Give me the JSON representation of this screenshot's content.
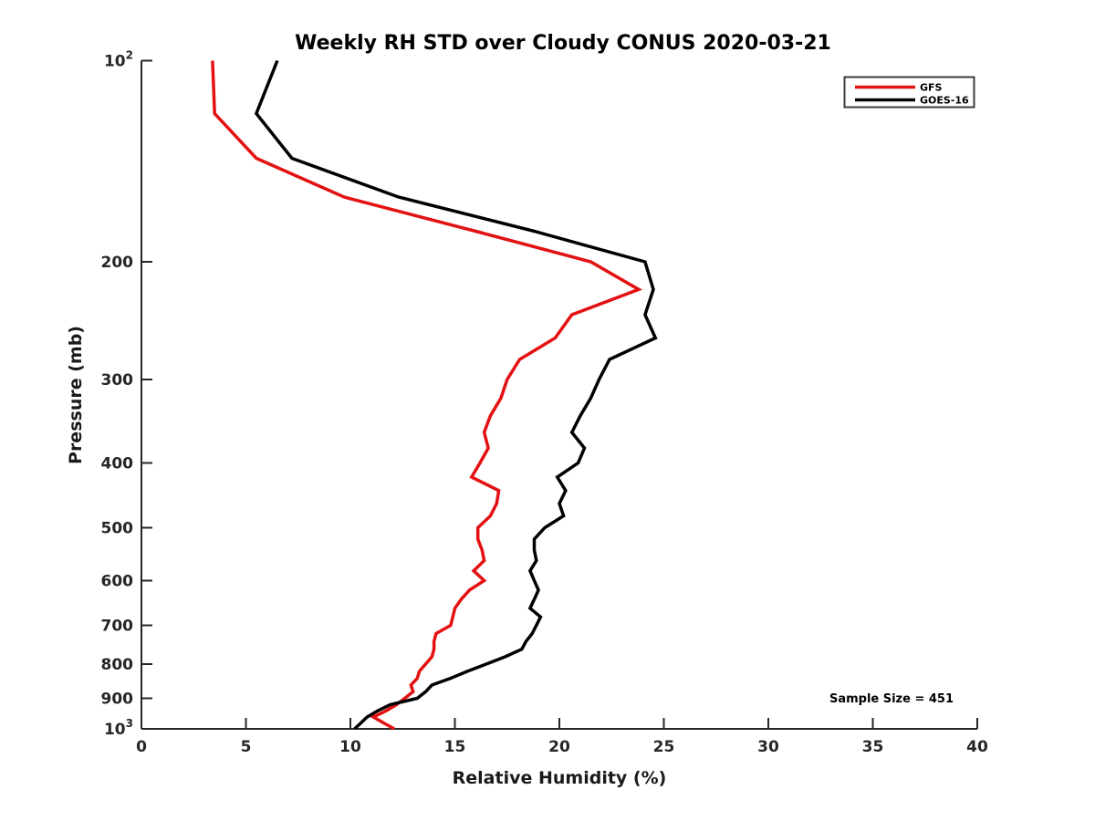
{
  "chart_data": {
    "type": "line",
    "title": "Weekly RH STD over Cloudy CONUS 2020-03-21",
    "xlabel": "Relative Humidity (%)",
    "ylabel": "Pressure (mb)",
    "annotation": "Sample Size = 451",
    "sample_size": 451,
    "x_axis": {
      "min": 0,
      "max": 40,
      "ticks": [
        0,
        5,
        10,
        15,
        20,
        25,
        30,
        35,
        40
      ],
      "grid": false
    },
    "y_axis": {
      "scale": "log",
      "min": 100,
      "max": 1000,
      "direction": "increasing-downward",
      "ticks": [
        {
          "v": 100,
          "base": "10",
          "exp": "2"
        },
        {
          "v": 200,
          "label": "200"
        },
        {
          "v": 300,
          "label": "300"
        },
        {
          "v": 400,
          "label": "400"
        },
        {
          "v": 500,
          "label": "500"
        },
        {
          "v": 600,
          "label": "600"
        },
        {
          "v": 700,
          "label": "700"
        },
        {
          "v": 800,
          "label": "800"
        },
        {
          "v": 900,
          "label": "900"
        },
        {
          "v": 1000,
          "base": "10",
          "exp": "3"
        }
      ]
    },
    "legend_position": "top-right",
    "pressure_levels": [
      100,
      120,
      140,
      160,
      180,
      200,
      220,
      240,
      260,
      280,
      300,
      320,
      340,
      360,
      380,
      400,
      420,
      440,
      460,
      480,
      500,
      520,
      540,
      560,
      580,
      600,
      620,
      640,
      660,
      680,
      700,
      720,
      740,
      760,
      780,
      800,
      820,
      840,
      860,
      880,
      900,
      920,
      940,
      960,
      980,
      1000
    ],
    "series": [
      {
        "name": "GFS",
        "color": "#e31111",
        "rh": [
          3.4,
          3.5,
          5.5,
          9.7,
          16.0,
          21.5,
          23.8,
          20.6,
          19.8,
          18.1,
          17.5,
          17.2,
          16.7,
          16.4,
          16.6,
          16.2,
          15.8,
          17.1,
          17.0,
          16.7,
          16.1,
          16.1,
          16.3,
          16.4,
          15.9,
          16.4,
          15.7,
          15.3,
          15.0,
          14.9,
          14.8,
          14.1,
          14.0,
          14.0,
          13.9,
          13.6,
          13.3,
          13.2,
          12.9,
          13.0,
          12.6,
          12.2,
          11.7,
          11.1,
          11.6,
          12.1
        ]
      },
      {
        "name": "GOES-16",
        "color": "#000000",
        "rh": [
          6.5,
          5.5,
          7.2,
          12.3,
          18.8,
          24.1,
          24.5,
          24.1,
          24.6,
          22.4,
          21.9,
          21.5,
          21.0,
          20.6,
          21.2,
          20.9,
          19.9,
          20.3,
          20.0,
          20.2,
          19.3,
          18.8,
          18.8,
          18.9,
          18.6,
          18.8,
          19.0,
          18.8,
          18.6,
          19.1,
          18.9,
          18.7,
          18.4,
          18.2,
          17.4,
          16.5,
          15.6,
          14.8,
          13.9,
          13.6,
          13.2,
          11.9,
          11.3,
          10.8,
          10.5,
          10.2
        ]
      }
    ]
  }
}
